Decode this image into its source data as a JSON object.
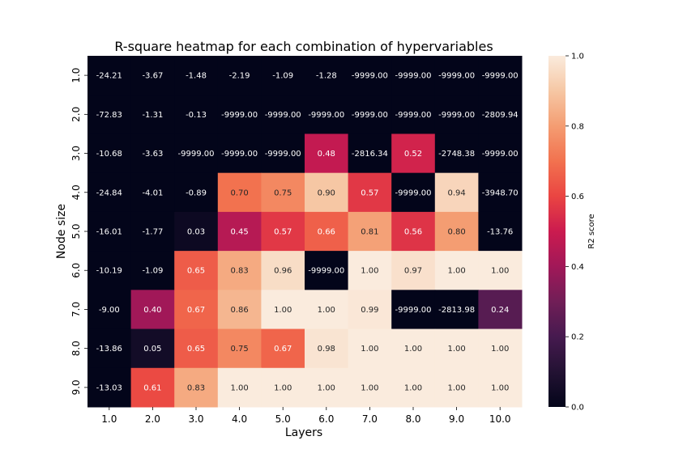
{
  "chart_data": {
    "type": "heatmap",
    "title": "R-square heatmap for each combination of hypervariables",
    "xlabel": "Layers",
    "ylabel": "Node size",
    "x_categories": [
      "1.0",
      "2.0",
      "3.0",
      "4.0",
      "5.0",
      "6.0",
      "7.0",
      "8.0",
      "9.0",
      "10.0"
    ],
    "y_categories": [
      "1.0",
      "2.0",
      "3.0",
      "4.0",
      "5.0",
      "6.0",
      "7.0",
      "8.0",
      "9.0"
    ],
    "values": [
      [
        -24.21,
        -3.67,
        -1.48,
        -2.19,
        -1.09,
        -1.28,
        -9999.0,
        -9999.0,
        -9999.0,
        -9999.0
      ],
      [
        -72.83,
        -1.31,
        -0.13,
        -9999.0,
        -9999.0,
        -9999.0,
        -9999.0,
        -9999.0,
        -9999.0,
        -2809.94
      ],
      [
        -10.68,
        -3.63,
        -9999.0,
        -9999.0,
        -9999.0,
        0.48,
        -2816.34,
        0.52,
        -2748.38,
        -9999.0
      ],
      [
        -24.84,
        -4.01,
        -0.89,
        0.7,
        0.75,
        0.9,
        0.57,
        -9999.0,
        0.94,
        -3948.7
      ],
      [
        -16.01,
        -1.77,
        0.03,
        0.45,
        0.57,
        0.66,
        0.81,
        0.56,
        0.8,
        -13.76
      ],
      [
        -10.19,
        -1.09,
        0.65,
        0.83,
        0.96,
        -9999.0,
        1.0,
        0.97,
        1.0,
        1.0
      ],
      [
        -9.0,
        0.4,
        0.67,
        0.86,
        1.0,
        1.0,
        0.99,
        -9999.0,
        -2813.98,
        0.24
      ],
      [
        -13.86,
        0.05,
        0.65,
        0.75,
        0.67,
        0.98,
        1.0,
        1.0,
        1.0,
        1.0
      ],
      [
        -13.03,
        0.61,
        0.83,
        1.0,
        1.0,
        1.0,
        1.0,
        1.0,
        1.0,
        1.0
      ]
    ],
    "value_format_decimals": 2,
    "color_range": [
      0.0,
      1.0
    ],
    "colormap": "rocket",
    "colorbar": {
      "label": "R2 score",
      "ticks": [
        "0.0",
        "0.2",
        "0.4",
        "0.6",
        "0.8",
        "1.0"
      ],
      "tick_values": [
        0.0,
        0.2,
        0.4,
        0.6,
        0.8,
        1.0
      ]
    },
    "grid": false
  }
}
